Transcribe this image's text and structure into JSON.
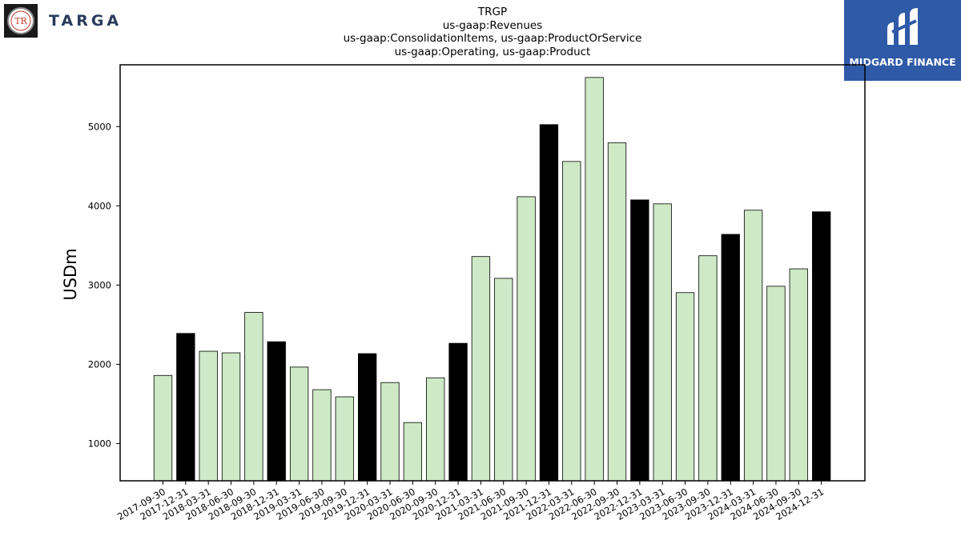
{
  "title_lines": [
    "TRGP",
    "us-gaap:Revenues",
    "us-gaap:ConsolidationItems, us-gaap:ProductOrService",
    "us-gaap:Operating, us-gaap:Product"
  ],
  "logos": {
    "left_text": "TARGA",
    "left_mark_text": "TR",
    "right_text": "MIDGARD FINANCE"
  },
  "colors": {
    "quarter_bar": "#cde9c6",
    "year_end_bar": "#000000",
    "bar_edge": "#000000"
  },
  "chart_data": {
    "type": "bar",
    "ylabel": "USDm",
    "ylim": [
      530,
      5780
    ],
    "yticks": [
      1000,
      2000,
      3000,
      4000,
      5000
    ],
    "categories": [
      "2017-09-30",
      "2017-12-31",
      "2018-03-31",
      "2018-06-30",
      "2018-09-30",
      "2018-12-31",
      "2019-03-31",
      "2019-06-30",
      "2019-09-30",
      "2019-12-31",
      "2020-03-31",
      "2020-06-30",
      "2020-09-30",
      "2020-12-31",
      "2021-03-31",
      "2021-06-30",
      "2021-09-30",
      "2021-12-31",
      "2022-03-31",
      "2022-06-30",
      "2022-09-30",
      "2022-12-31",
      "2023-03-31",
      "2023-06-30",
      "2023-09-30",
      "2023-12-31",
      "2024-03-31",
      "2024-06-30",
      "2024-09-30",
      "2024-12-31"
    ],
    "values": [
      1860,
      2390,
      2165,
      2145,
      2655,
      2285,
      1965,
      1680,
      1590,
      2135,
      1770,
      1265,
      1830,
      2265,
      3360,
      3085,
      4115,
      5025,
      4560,
      5620,
      4795,
      4075,
      4025,
      2905,
      3370,
      3640,
      3945,
      2985,
      3205,
      3925
    ],
    "year_end": [
      false,
      true,
      false,
      false,
      false,
      true,
      false,
      false,
      false,
      true,
      false,
      false,
      false,
      true,
      false,
      false,
      false,
      true,
      false,
      false,
      false,
      true,
      false,
      false,
      false,
      true,
      false,
      false,
      false,
      true
    ],
    "grid": false,
    "legend": "none"
  }
}
